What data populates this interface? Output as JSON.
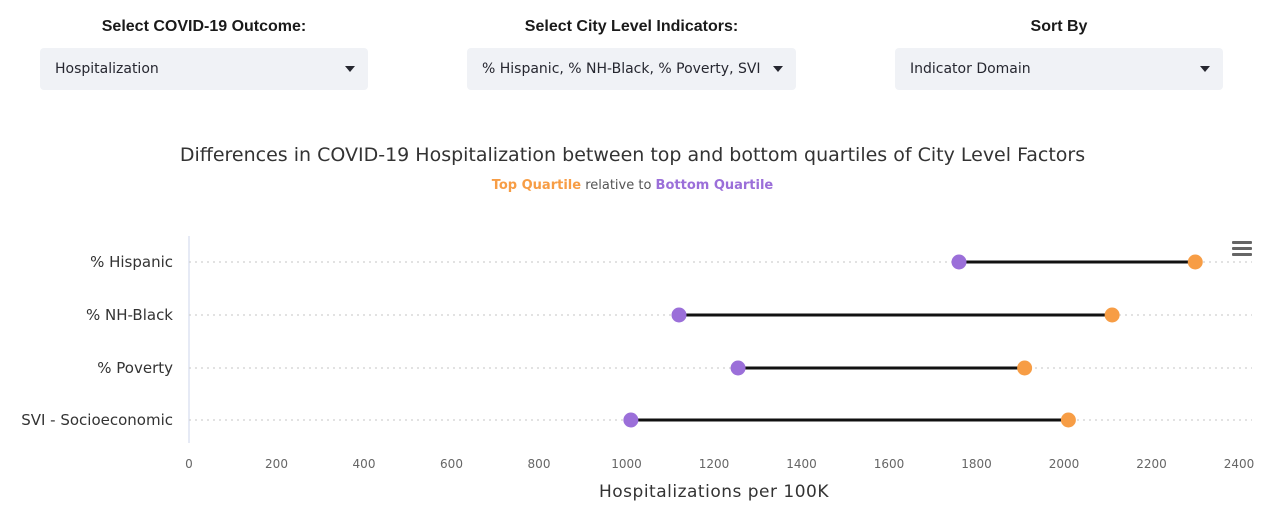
{
  "controls": {
    "outcome": {
      "label": "Select COVID-19 Outcome:",
      "value": "Hospitalization"
    },
    "indicators": {
      "label": "Select City Level Indicators:",
      "value": "% Hispanic, % NH-Black, % Poverty, SVI - Socioeconomic"
    },
    "sort": {
      "label": "Sort By",
      "value": "Indicator Domain"
    }
  },
  "colors": {
    "top_quartile": "#f79d45",
    "bottom_quartile": "#9b6fd9",
    "connector": "#111111"
  },
  "chart_data": {
    "type": "dumbbell",
    "title": "Differences in COVID-19 Hospitalization between top and bottom quartiles of City Level Factors",
    "subtitle": {
      "top": "Top Quartile",
      "middle": " relative to ",
      "bottom": "Bottom Quartile"
    },
    "xlabel": "Hospitalizations per 100K",
    "xlim": [
      0,
      2400
    ],
    "xticks": [
      0,
      200,
      400,
      600,
      800,
      1000,
      1200,
      1400,
      1600,
      1800,
      2000,
      2200,
      2400
    ],
    "categories": [
      "% Hispanic",
      "% NH-Black",
      "% Poverty",
      "SVI - Socioeconomic"
    ],
    "series": [
      {
        "name": "Bottom Quartile",
        "values": [
          1760,
          1120,
          1255,
          1010
        ]
      },
      {
        "name": "Top Quartile",
        "values": [
          2300,
          2110,
          1910,
          2010
        ]
      }
    ],
    "grid": "horizontal dotted"
  }
}
